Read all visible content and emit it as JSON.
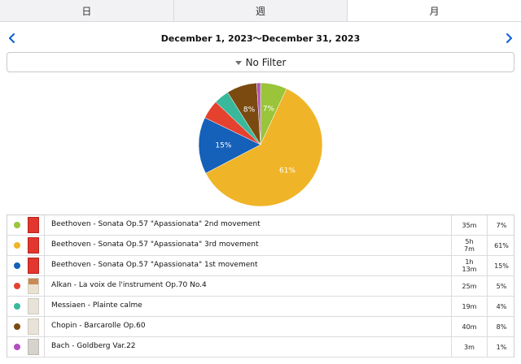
{
  "tabs": [
    {
      "label": "日",
      "active": false
    },
    {
      "label": "週",
      "active": false
    },
    {
      "label": "月",
      "active": true
    }
  ],
  "date_range": "December 1, 2023～December 31, 2023",
  "filter_label": "No Filter",
  "colors": {
    "accent": "#0a60d6",
    "series": [
      "#9ac43a",
      "#f0b428",
      "#1560b8",
      "#e5412f",
      "#3ab89c",
      "#7a4a10",
      "#b34ec0"
    ]
  },
  "chart_data": {
    "type": "pie",
    "slices": [
      {
        "name": "Beethoven - Sonata Op.57 \"Apassionata\" 2nd movement",
        "value": 7,
        "label": "7%"
      },
      {
        "name": "Beethoven - Sonata Op.57 \"Apassionata\" 3rd movement",
        "value": 61,
        "label": "61%"
      },
      {
        "name": "Beethoven - Sonata Op.57 \"Apassionata\" 1st movement",
        "value": 15,
        "label": "15%"
      },
      {
        "name": "Alkan - La voix de l'instrument Op.70 No.4",
        "value": 5,
        "label": ""
      },
      {
        "name": "Messiaen - Plainte calme",
        "value": 4,
        "label": ""
      },
      {
        "name": "Chopin - Barcarolle Op.60",
        "value": 8,
        "label": "8%"
      },
      {
        "name": "Bach - Goldberg Var.22",
        "value": 1,
        "label": ""
      }
    ]
  },
  "rows": [
    {
      "title": "Beethoven - Sonata Op.57 \"Apassionata\" 2nd movement",
      "duration": "35m",
      "percent": "7%",
      "color": "#9ac43a",
      "thumb": "red"
    },
    {
      "title": "Beethoven - Sonata Op.57 \"Apassionata\" 3rd movement",
      "duration": "5h\n7m",
      "percent": "61%",
      "color": "#f0b428",
      "thumb": "red"
    },
    {
      "title": "Beethoven - Sonata Op.57 \"Apassionata\" 1st movement",
      "duration": "1h\n13m",
      "percent": "15%",
      "color": "#1560b8",
      "thumb": "red"
    },
    {
      "title": "Alkan - La voix de l'instrument Op.70 No.4",
      "duration": "25m",
      "percent": "5%",
      "color": "#e5412f",
      "thumb": "paper-pic"
    },
    {
      "title": "Messiaen - Plainte calme",
      "duration": "19m",
      "percent": "4%",
      "color": "#3ab89c",
      "thumb": "paper"
    },
    {
      "title": "Chopin - Barcarolle Op.60",
      "duration": "40m",
      "percent": "8%",
      "color": "#7a4a10",
      "thumb": "paper"
    },
    {
      "title": "Bach - Goldberg Var.22",
      "duration": "3m",
      "percent": "1%",
      "color": "#b34ec0",
      "thumb": "gray"
    }
  ]
}
